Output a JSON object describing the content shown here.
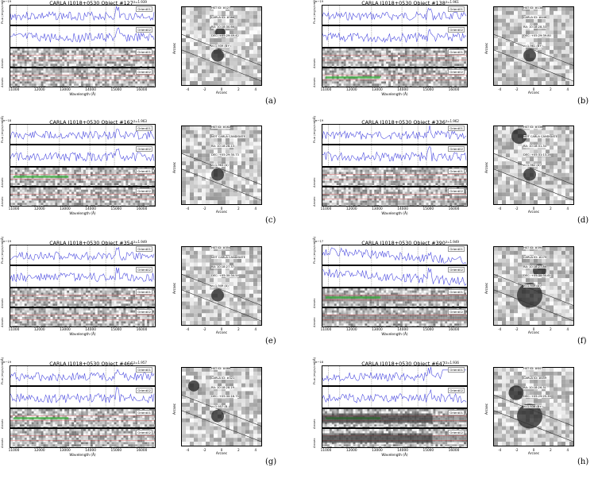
{
  "common": {
    "xlabel": "Wavelength (Å)",
    "xticks": [
      "11000",
      "12000",
      "13000",
      "14000",
      "15000",
      "16000"
    ],
    "cut_xlabel": "Arcsec",
    "cut_xticks": [
      "-4",
      "-2",
      "0",
      "2",
      "4"
    ],
    "flux_label": "Flux (erg/s/cm²/Å)",
    "arcsec_label": "Arcsec",
    "orient1": "Orient01",
    "orient2": "Orient02",
    "line_marks": [
      "[OII]",
      "[NeIII]",
      "Hδ",
      "Hγ",
      "Hβ",
      "[OIII]"
    ],
    "spectrum_color": "#4a4adf",
    "redline_color": "#d94040",
    "contam_color": "#2faa2f"
  },
  "panels": [
    {
      "letter": "(a)",
      "title": "CARLA J1018+0530 Object #127",
      "z": "z=1.939",
      "exp1": "1e−19",
      "exp2": "1e−19",
      "info": [
        "HST ID: #127",
        "CARLA ID: #388",
        "RA: 10:18:30.66",
        "DEC: +05:29:49.42",
        "z=1.939 (B+)"
      ],
      "seed": 3,
      "green": 0,
      "bright": 0
    },
    {
      "letter": "(b)",
      "title": "CARLA J1018+0530 Object #138",
      "z": "z=1.961",
      "exp1": "1e−19",
      "exp2": "1e−19",
      "info": [
        "HST ID: #138",
        "CARLA ID: #446",
        "RA: 10:18:28.33",
        "DEC: +05:29:39.80",
        "z=1.961 (B+)"
      ],
      "seed": 7,
      "green": 2,
      "bright": 0
    },
    {
      "letter": "(c)",
      "title": "CARLA J1018+0530 Object #162",
      "z": "z=1.963",
      "exp1": "1e−18",
      "exp2": "1e−19",
      "info": [
        "HST ID: #162",
        "NOT CARLA CANDIDATE",
        "RA: 10:18:28.13",
        "DEC: +05:29:30.73",
        "z=1.963 (A)"
      ],
      "seed": 11,
      "green": 1,
      "bright": 0
    },
    {
      "letter": "(d)",
      "title": "CARLA J1018+0530 Object #336",
      "z": "z=1.962",
      "exp1": "1e−19",
      "exp2": "1e−19",
      "info": [
        "HST ID: #336",
        "NOT CARLA CANDIDATE",
        "RA: 10:18:31.34",
        "DEC: +05:31:13.28",
        "z=1.962 (A)"
      ],
      "seed": 17,
      "green": 0,
      "bright": 0
    },
    {
      "letter": "(e)",
      "title": "CARLA J1018+0530 Object #354",
      "z": "z=1.949",
      "exp1": "1e−19",
      "exp2": "1e−19",
      "info": [
        "HST ID: #354",
        "NOT CARLA CANDIDATE",
        "RA: 10:18:27.37",
        "DEC: +05:30:34.54",
        "z=1.949 (A)"
      ],
      "seed": 23,
      "green": 0,
      "bright": 0
    },
    {
      "letter": "(f)",
      "title": "CARLA J1018+0530 Object #390",
      "z": "z=1.949",
      "exp1": "1e−17",
      "exp2": "1e−17",
      "info": [
        "HST ID: #390",
        "CARLA ID: #279",
        "RA: 10:18:27.86",
        "DEC: +05:30:30.61",
        "z=1.949 (A)"
      ],
      "seed": 29,
      "green": 1,
      "bright": 1
    },
    {
      "letter": "(g)",
      "title": "CARLA J1018+0530 Object #466",
      "z": "z=1.957",
      "exp1": "1e−19",
      "exp2": "1e−19",
      "info": [
        "HST ID: #466",
        "CARLA ID: #321",
        "RA: 10:18:28.19",
        "DEC: +05:30:16.75",
        "z=1.957 (B-)"
      ],
      "seed": 31,
      "green": 1,
      "bright": 0
    },
    {
      "letter": "(h)",
      "title": "CARLA J1018+0530 Object #647",
      "z": "z=1.936",
      "exp1": "1e−18",
      "exp2": "1e−19",
      "info": [
        "HST ID: #647",
        "CARLA ID: #459",
        "RA: 10:18:26.31",
        "DEC: +05:29:25.39",
        "z=1.936 (B+)"
      ],
      "seed": 37,
      "green": 1,
      "bright": 2
    }
  ]
}
